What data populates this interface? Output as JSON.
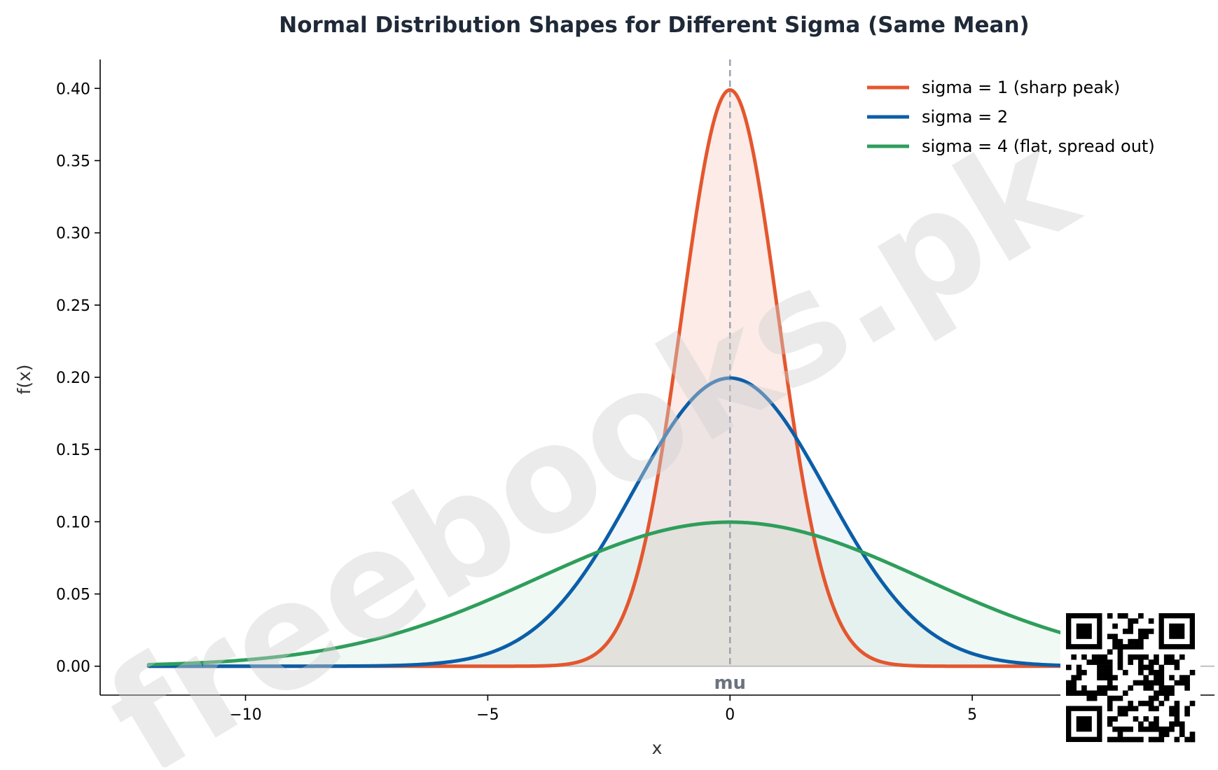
{
  "chart_data": {
    "type": "line",
    "title": "Normal Distribution Shapes for Different Sigma (Same Mean)",
    "xlabel": "x",
    "ylabel": "f(x)",
    "xlim": [
      -13,
      10
    ],
    "ylim": [
      -0.02,
      0.42
    ],
    "xticks": [
      {
        "value": -10,
        "label": "−10"
      },
      {
        "value": -5,
        "label": "−5"
      },
      {
        "value": 0,
        "label": "0"
      },
      {
        "value": 5,
        "label": "5"
      }
    ],
    "yticks": [
      {
        "value": 0.0,
        "label": "0.00"
      },
      {
        "value": 0.05,
        "label": "0.05"
      },
      {
        "value": 0.1,
        "label": "0.10"
      },
      {
        "value": 0.15,
        "label": "0.15"
      },
      {
        "value": 0.2,
        "label": "0.20"
      },
      {
        "value": 0.25,
        "label": "0.25"
      },
      {
        "value": 0.3,
        "label": "0.30"
      },
      {
        "value": 0.35,
        "label": "0.35"
      },
      {
        "value": 0.4,
        "label": "0.40"
      }
    ],
    "x_range": [
      -12,
      12
    ],
    "mean": 0,
    "series": [
      {
        "name": "sigma = 1 (sharp peak)",
        "sigma": 1,
        "color": "#e4572e",
        "fill": "#e4572e"
      },
      {
        "name": "sigma = 2",
        "sigma": 2,
        "color": "#0b5ea8",
        "fill": "#8ab4d8"
      },
      {
        "name": "sigma = 4 (flat, spread out)",
        "sigma": 4,
        "color": "#2e9e5b",
        "fill": "#8fd0a8"
      }
    ],
    "annotations": [
      {
        "text": "mu",
        "x": 0
      }
    ],
    "legend_position": "top-right",
    "grid": false
  },
  "watermark": {
    "text": "freebooks.pk"
  }
}
